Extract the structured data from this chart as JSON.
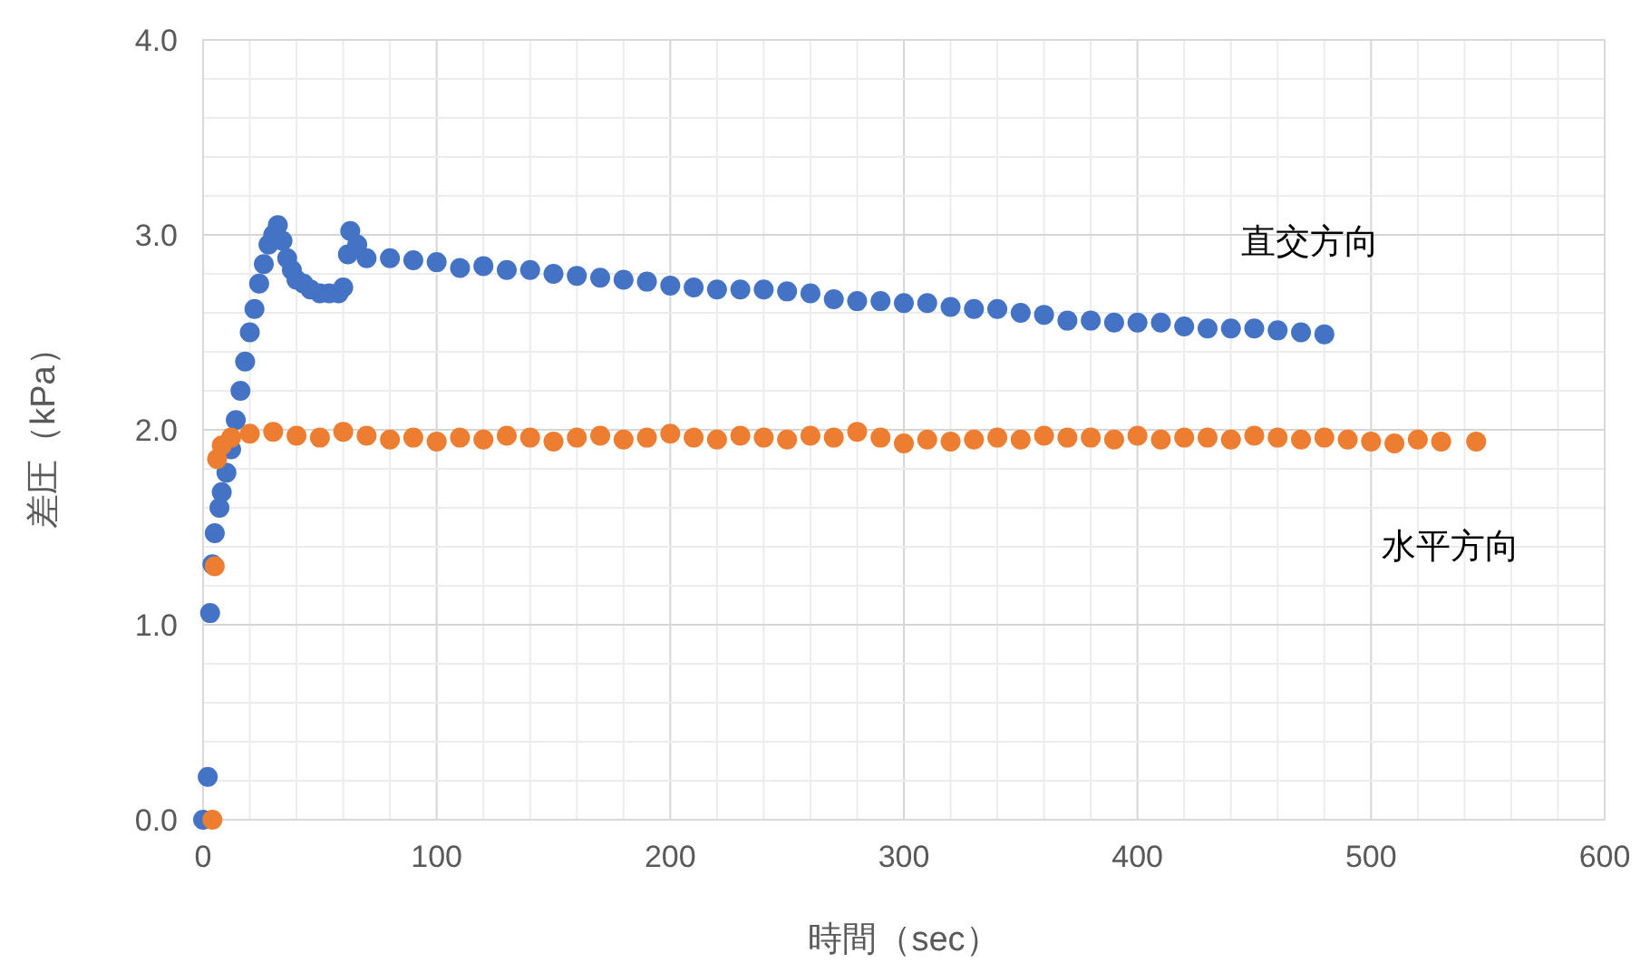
{
  "chart_data": {
    "type": "scatter",
    "xlabel": "時間（sec）",
    "ylabel": "差圧（kPa）",
    "xlim": [
      0,
      600
    ],
    "ylim": [
      0,
      4
    ],
    "xticks": [
      0,
      {
        "value": 20,
        "label": null
      },
      {
        "value": 40,
        "label": null
      },
      {
        "value": 60,
        "label": null
      },
      {
        "value": 80,
        "label": null
      },
      100,
      {
        "value": 120,
        "label": null
      },
      {
        "value": 140,
        "label": null
      },
      {
        "value": 160,
        "label": null
      },
      {
        "value": 180,
        "label": null
      },
      200,
      {
        "value": 220,
        "label": null
      },
      {
        "value": 240,
        "label": null
      },
      {
        "value": 260,
        "label": null
      },
      {
        "value": 280,
        "label": null
      },
      300,
      {
        "value": 320,
        "label": null
      },
      {
        "value": 340,
        "label": null
      },
      {
        "value": 360,
        "label": null
      },
      {
        "value": 380,
        "label": null
      },
      400,
      {
        "value": 420,
        "label": null
      },
      {
        "value": 440,
        "label": null
      },
      {
        "value": 460,
        "label": null
      },
      {
        "value": 480,
        "label": null
      },
      500,
      {
        "value": 520,
        "label": null
      },
      {
        "value": 540,
        "label": null
      },
      {
        "value": 560,
        "label": null
      },
      {
        "value": 580,
        "label": null
      },
      600
    ],
    "yticks": [
      {
        "value": 0,
        "label": "0.0"
      },
      {
        "value": 0.2,
        "label": null
      },
      {
        "value": 0.4,
        "label": null
      },
      {
        "value": 0.6,
        "label": null
      },
      {
        "value": 0.8,
        "label": null
      },
      {
        "value": 1,
        "label": "1.0"
      },
      {
        "value": 1.2,
        "label": null
      },
      {
        "value": 1.4,
        "label": null
      },
      {
        "value": 1.6,
        "label": null
      },
      {
        "value": 1.8,
        "label": null
      },
      {
        "value": 2,
        "label": "2.0"
      },
      {
        "value": 2.2,
        "label": null
      },
      {
        "value": 2.4,
        "label": null
      },
      {
        "value": 2.6,
        "label": null
      },
      {
        "value": 2.8,
        "label": null
      },
      {
        "value": 3,
        "label": "3.0"
      },
      {
        "value": 3.2,
        "label": null
      },
      {
        "value": 3.4,
        "label": null
      },
      {
        "value": 3.6,
        "label": null
      },
      {
        "value": 3.8,
        "label": null
      },
      {
        "value": 4,
        "label": "4.0"
      }
    ],
    "grid": true,
    "legend": false,
    "marker": "circle",
    "series": [
      {
        "name": "直交方向",
        "color": "#4472c4",
        "x": [
          0,
          2,
          3,
          4,
          5,
          7,
          8,
          10,
          12,
          14,
          16,
          18,
          20,
          22,
          24,
          26,
          28,
          30,
          32,
          34,
          36,
          38,
          40,
          43,
          46,
          50,
          54,
          58,
          60,
          62,
          63,
          66,
          70,
          80,
          90,
          100,
          110,
          120,
          130,
          140,
          150,
          160,
          170,
          180,
          190,
          200,
          210,
          220,
          230,
          240,
          250,
          260,
          270,
          280,
          290,
          300,
          310,
          320,
          330,
          340,
          350,
          360,
          370,
          380,
          390,
          400,
          410,
          420,
          430,
          440,
          450,
          460,
          470,
          480
        ],
        "values": [
          0,
          0.22,
          1.06,
          1.31,
          1.47,
          1.6,
          1.68,
          1.78,
          1.9,
          2.05,
          2.2,
          2.35,
          2.5,
          2.62,
          2.75,
          2.85,
          2.95,
          3.0,
          3.05,
          2.97,
          2.88,
          2.82,
          2.77,
          2.75,
          2.72,
          2.7,
          2.7,
          2.7,
          2.73,
          2.9,
          3.02,
          2.95,
          2.88,
          2.88,
          2.87,
          2.86,
          2.83,
          2.84,
          2.82,
          2.82,
          2.8,
          2.79,
          2.78,
          2.77,
          2.76,
          2.74,
          2.73,
          2.72,
          2.72,
          2.72,
          2.71,
          2.7,
          2.67,
          2.66,
          2.66,
          2.65,
          2.65,
          2.63,
          2.62,
          2.62,
          2.6,
          2.59,
          2.56,
          2.56,
          2.55,
          2.55,
          2.55,
          2.53,
          2.52,
          2.52,
          2.52,
          2.51,
          2.5,
          2.49
        ]
      },
      {
        "name": "水平方向",
        "color": "#ed7d31",
        "x": [
          4,
          5,
          6,
          8,
          12,
          20,
          30,
          40,
          50,
          60,
          70,
          80,
          90,
          100,
          110,
          120,
          130,
          140,
          150,
          160,
          170,
          180,
          190,
          200,
          210,
          220,
          230,
          240,
          250,
          260,
          270,
          280,
          290,
          300,
          310,
          320,
          330,
          340,
          350,
          360,
          370,
          380,
          390,
          400,
          410,
          420,
          430,
          440,
          450,
          460,
          470,
          480,
          490,
          500,
          510,
          520,
          530,
          545
        ],
        "values": [
          0,
          1.3,
          1.85,
          1.92,
          1.96,
          1.98,
          1.99,
          1.97,
          1.96,
          1.99,
          1.97,
          1.95,
          1.96,
          1.94,
          1.96,
          1.95,
          1.97,
          1.96,
          1.94,
          1.96,
          1.97,
          1.95,
          1.96,
          1.98,
          1.96,
          1.95,
          1.97,
          1.96,
          1.95,
          1.97,
          1.96,
          1.99,
          1.96,
          1.93,
          1.95,
          1.94,
          1.95,
          1.96,
          1.95,
          1.97,
          1.96,
          1.96,
          1.95,
          1.97,
          1.95,
          1.96,
          1.96,
          1.95,
          1.97,
          1.96,
          1.95,
          1.96,
          1.95,
          1.94,
          1.93,
          1.95,
          1.94,
          1.94
        ]
      }
    ]
  }
}
